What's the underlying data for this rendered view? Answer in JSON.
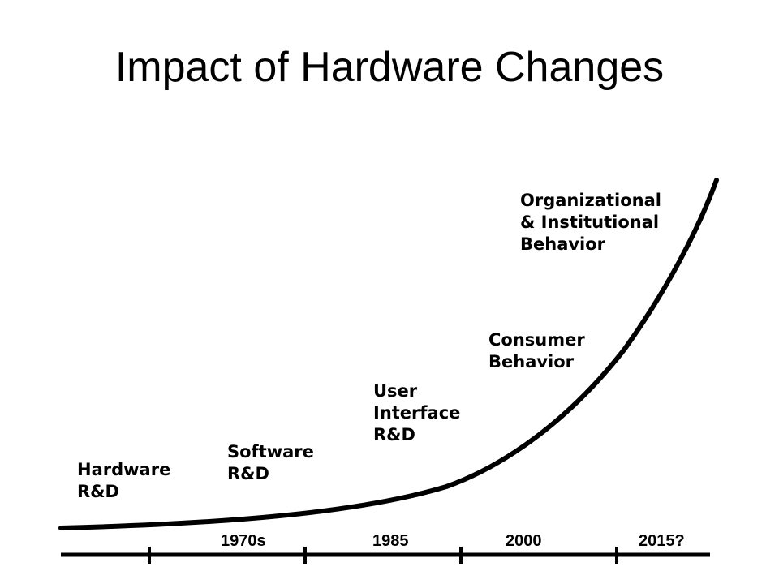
{
  "title": "Impact of Hardware Changes",
  "stages": [
    {
      "id": "hardware",
      "lines": [
        "Hardware",
        "R&D"
      ]
    },
    {
      "id": "software",
      "lines": [
        "Software",
        "R&D"
      ]
    },
    {
      "id": "user-interface",
      "lines": [
        "User",
        "Interface",
        "R&D"
      ]
    },
    {
      "id": "consumer",
      "lines": [
        "Consumer",
        "Behavior"
      ]
    },
    {
      "id": "organizational",
      "lines": [
        "Organizational",
        "& Institutional",
        "Behavior"
      ]
    }
  ],
  "timeline": {
    "ticks": [
      "1970s",
      "1985",
      "2000",
      "2015?"
    ]
  },
  "colors": {
    "ink": "#000000",
    "background": "#ffffff"
  }
}
